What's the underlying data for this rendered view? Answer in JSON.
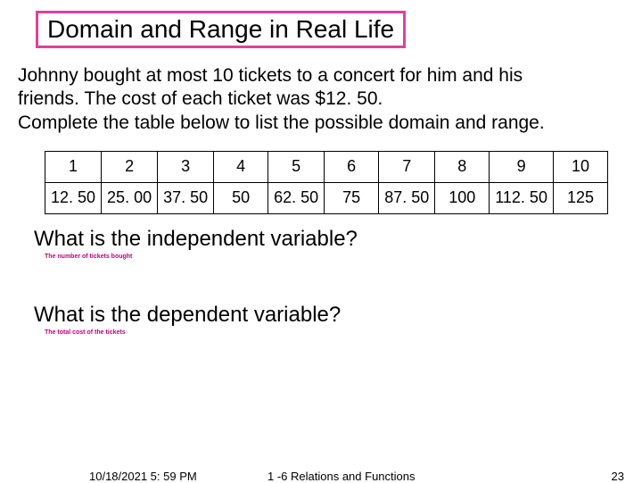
{
  "title": "Domain and Range in Real Life",
  "problem_line1": "Johnny bought at most 10 tickets to a concert for him and his",
  "problem_line2": "friends. The cost of each ticket was $12. 50.",
  "problem_line3": "Complete the table below to list the possible domain and range.",
  "table": {
    "row1": [
      "1",
      "2",
      "3",
      "4",
      "5",
      "6",
      "7",
      "8",
      "9",
      "10"
    ],
    "row2": [
      "12. 50",
      "25. 00",
      "37. 50",
      "50",
      "62. 50",
      "75",
      "87. 50",
      "100",
      "112. 50",
      "125"
    ]
  },
  "question1": "What is the independent variable?",
  "answer1": "The number of tickets bought",
  "question2": "What is the dependent variable?",
  "answer2": "The total cost of the tickets",
  "footer": {
    "date": "10/18/2021 5: 59 PM",
    "center": "1 -6 Relations and Functions",
    "page": "23"
  },
  "colors": {
    "title_border": "#e040a0",
    "answer_color": "#c00080"
  }
}
